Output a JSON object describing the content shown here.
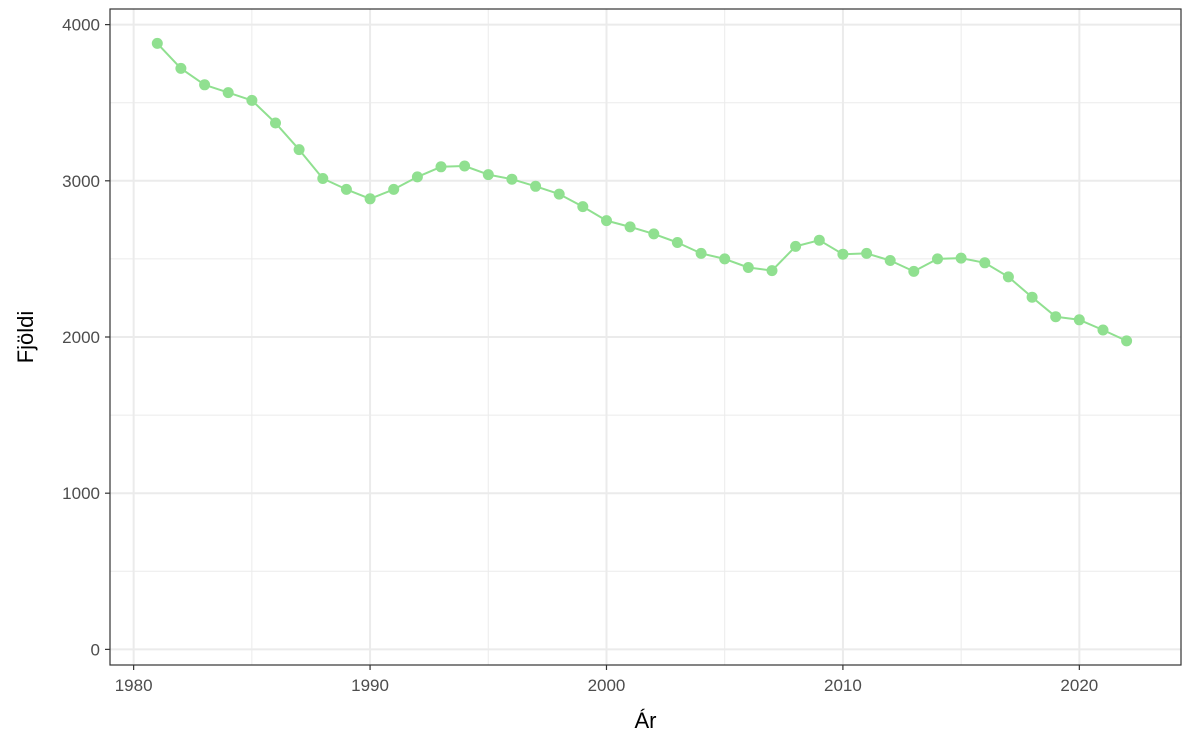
{
  "chart_data": {
    "type": "line",
    "title": "",
    "xlabel": "Ár",
    "ylabel": "Fjöldi",
    "xlim": [
      1979,
      2024.3
    ],
    "ylim": [
      -100,
      4100
    ],
    "x_ticks": [
      1980,
      1990,
      2000,
      2010,
      2020
    ],
    "y_ticks": [
      0,
      1000,
      2000,
      3000,
      4000
    ],
    "x_tick_labels": [
      "1980",
      "1990",
      "2000",
      "2010",
      "2020"
    ],
    "y_tick_labels": [
      "0",
      "1000",
      "2000",
      "3000",
      "4000"
    ],
    "grid": true,
    "legend": "none",
    "colors": {
      "series": "#90e090",
      "grid": "#ebebeb",
      "panel_border": "#333333",
      "tick_label": "#4d4d4d"
    },
    "series": [
      {
        "x": [
          1981,
          1982,
          1983,
          1984,
          1985,
          1986,
          1987,
          1988,
          1989,
          1990,
          1991,
          1992,
          1993,
          1994,
          1995,
          1996,
          1997,
          1998,
          1999,
          2000,
          2001,
          2002,
          2003,
          2004,
          2005,
          2006,
          2007,
          2008,
          2009,
          2010,
          2011,
          2012,
          2013,
          2014,
          2015,
          2016,
          2017,
          2018,
          2019,
          2020,
          2021,
          2022
        ],
        "y": [
          3880,
          3720,
          3615,
          3565,
          3515,
          3370,
          3200,
          3015,
          2945,
          2885,
          2945,
          3025,
          3090,
          3095,
          3040,
          3010,
          2965,
          2915,
          2835,
          2745,
          2705,
          2660,
          2605,
          2535,
          2500,
          2445,
          2425,
          2580,
          2620,
          2530,
          2535,
          2490,
          2420,
          2500,
          2505,
          2475,
          2385,
          2255,
          2130,
          2110,
          2045,
          1975
        ]
      }
    ]
  }
}
